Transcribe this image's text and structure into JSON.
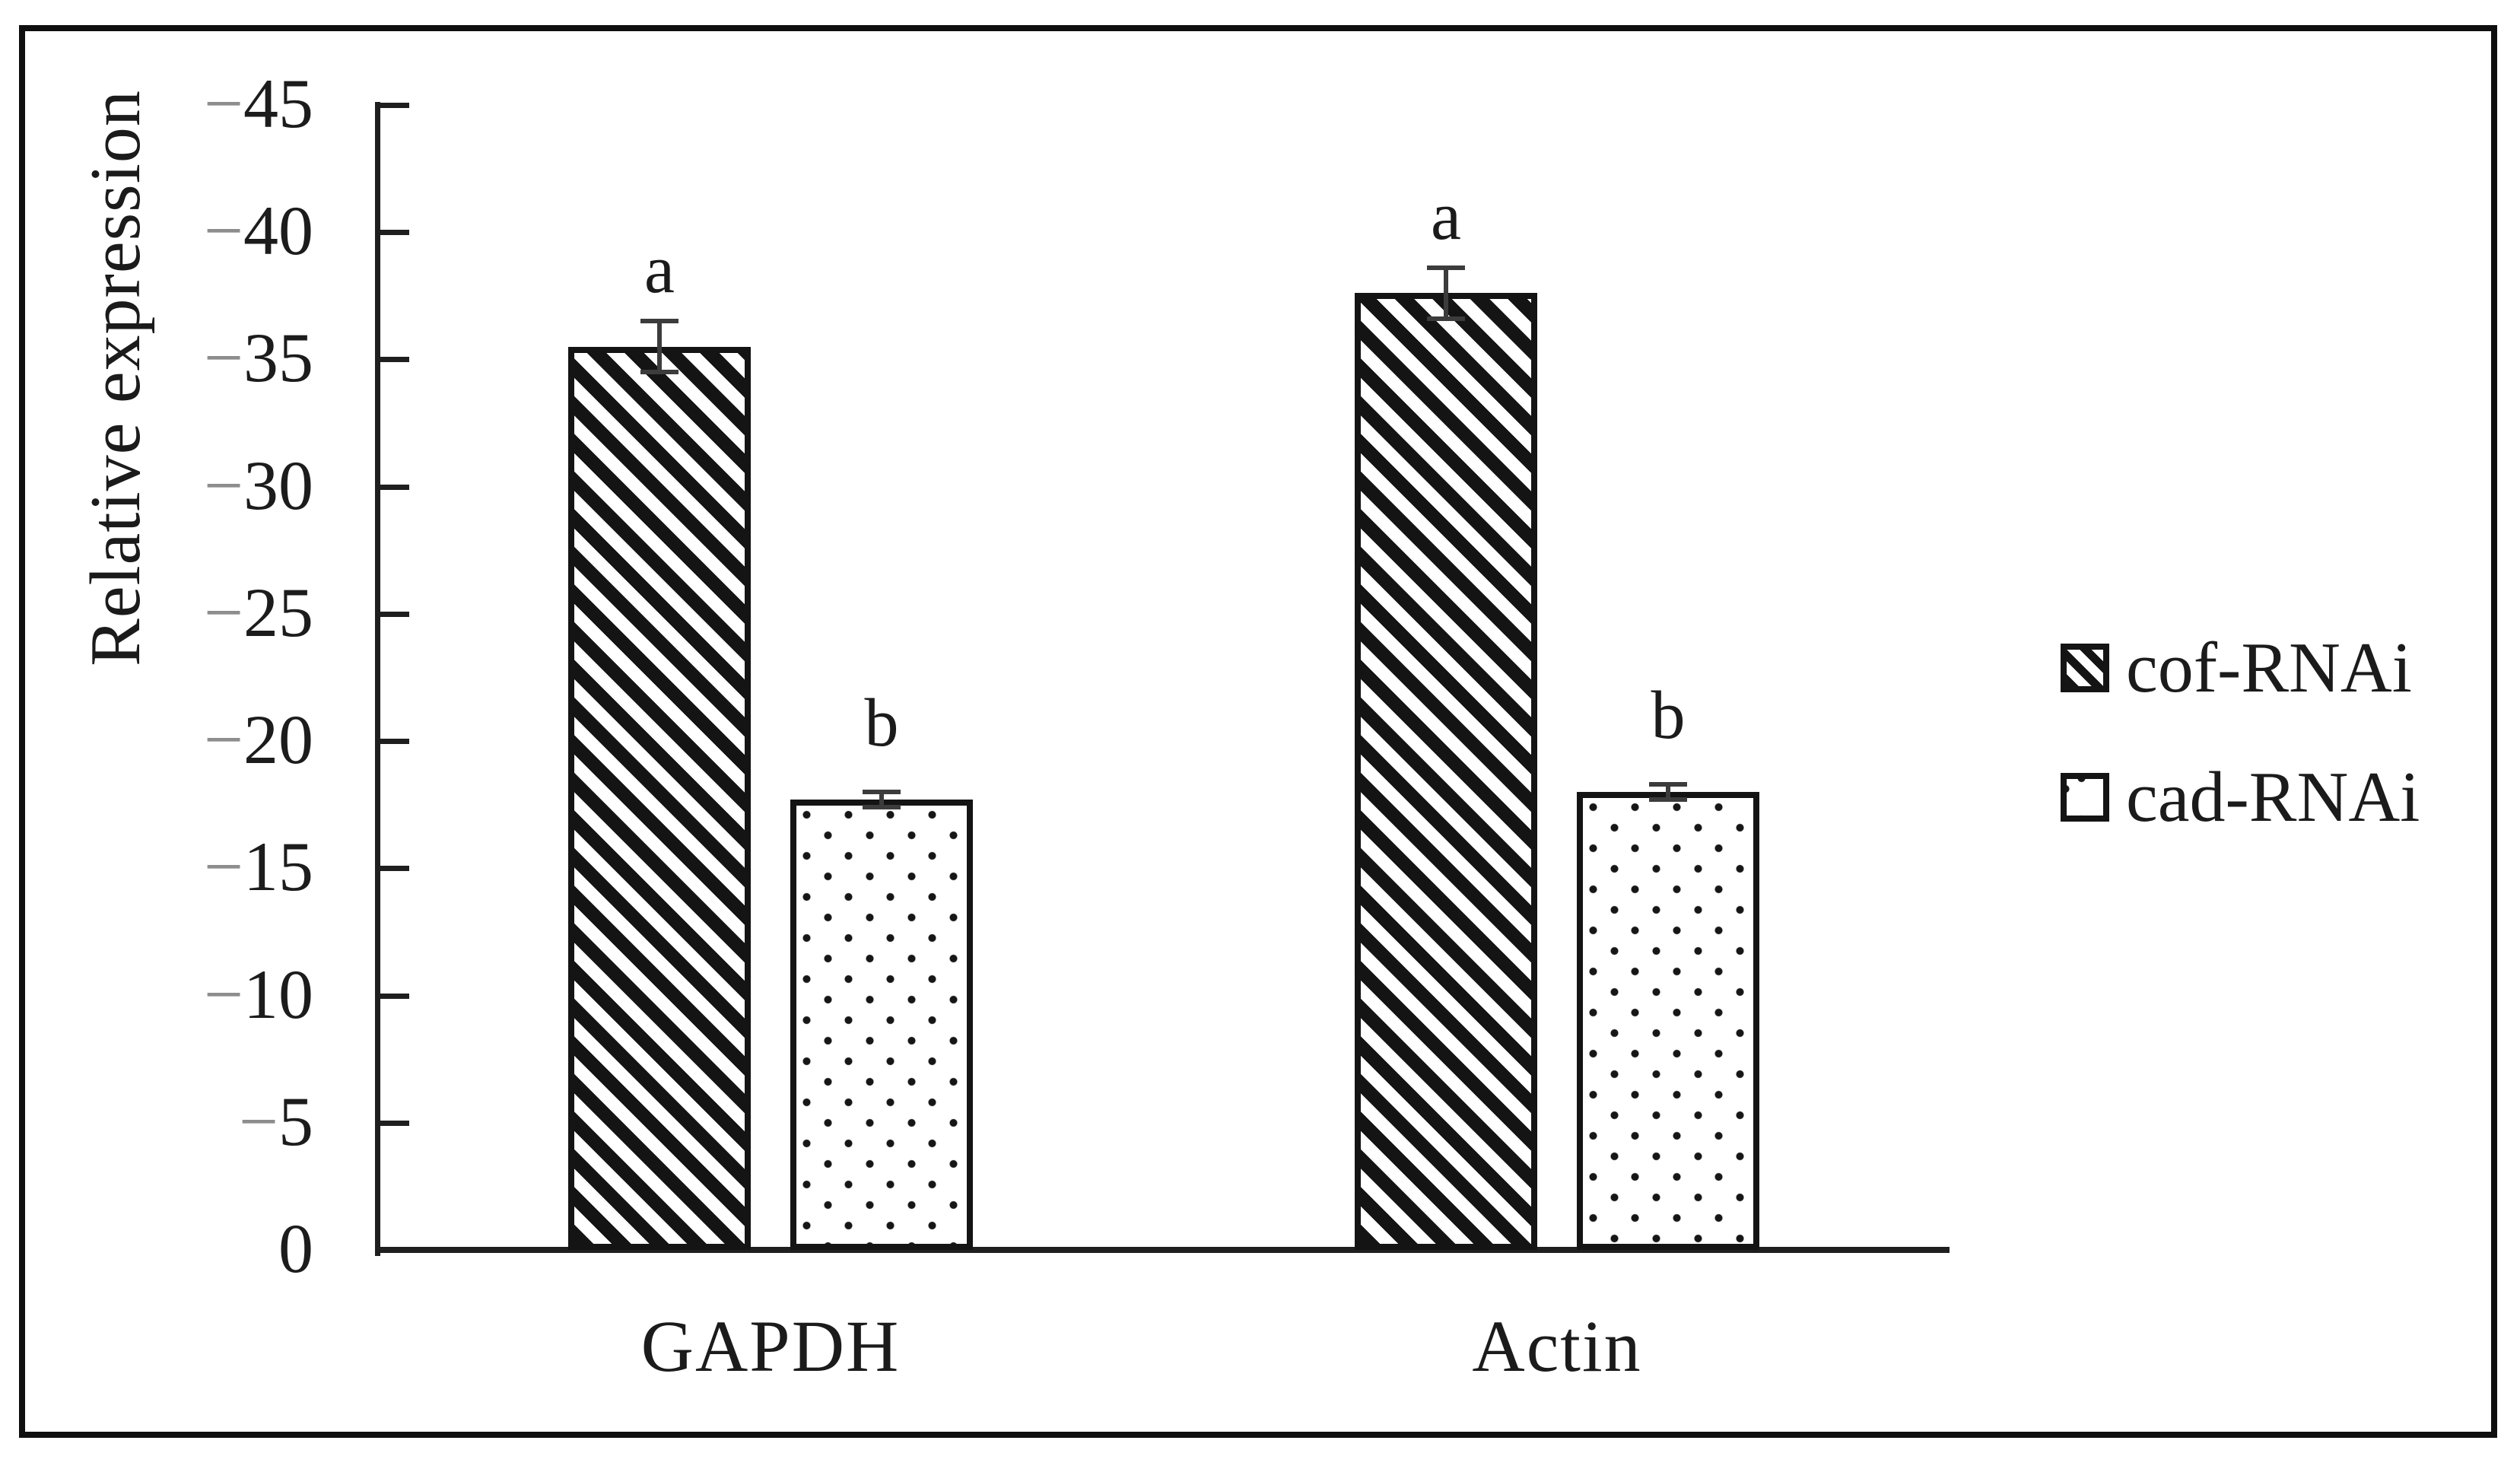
{
  "chart_data": {
    "type": "bar",
    "title": "",
    "categories": [
      "GAPDH",
      "Actin"
    ],
    "series": [
      {
        "name": "cof-RNAi",
        "pattern": "diagonal-hatch",
        "values": [
          35.5,
          37.6
        ],
        "errors": [
          1.0,
          1.0
        ],
        "sig_labels": [
          "a",
          "a"
        ]
      },
      {
        "name": "cad-RNAi",
        "pattern": "dots",
        "values": [
          17.7,
          18.0
        ],
        "errors": [
          0.3,
          0.3
        ],
        "sig_labels": [
          "b",
          "b"
        ]
      }
    ],
    "xlabel": "",
    "ylabel": "Relative expression",
    "ylim": [
      0,
      45
    ],
    "ytick_step": 5,
    "ytick_labels": [
      "0",
      "−5",
      "−10",
      "−15",
      "−20",
      "−25",
      "−30",
      "−35",
      "−40",
      "−45"
    ],
    "grid": false,
    "legend_position": "right"
  },
  "legend": {
    "items": [
      {
        "label": "cof-RNAi",
        "swatch": "diagonal-hatch-swatch-icon"
      },
      {
        "label": "cad-RNAi",
        "swatch": "dots-swatch-icon"
      }
    ]
  },
  "colors": {
    "ink": "#1b1b1b",
    "axis": "#1f1f1f",
    "tick_dash": "#8d8d8d",
    "error_bar": "#3c3c3c",
    "background": "#ffffff"
  }
}
